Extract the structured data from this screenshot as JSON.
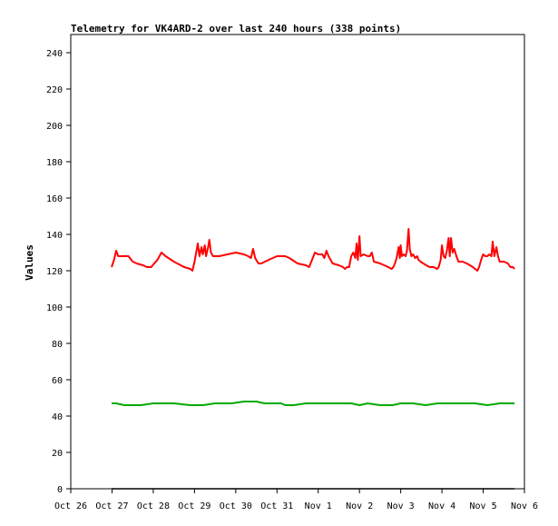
{
  "chart_data": {
    "type": "line",
    "title": "Telemetry for VK4ARD-2 over last 240 hours (338 points)",
    "xlabel": "",
    "ylabel": "Values",
    "ylim": [
      0,
      250
    ],
    "yticks": [
      0,
      20,
      40,
      60,
      80,
      100,
      120,
      140,
      160,
      180,
      200,
      220,
      240
    ],
    "xlim": [
      0,
      11
    ],
    "xticks": [
      {
        "x": 0,
        "label": "Oct 26"
      },
      {
        "x": 1,
        "label": "Oct 27"
      },
      {
        "x": 2,
        "label": "Oct 28"
      },
      {
        "x": 3,
        "label": "Oct 29"
      },
      {
        "x": 4,
        "label": "Oct 30"
      },
      {
        "x": 5,
        "label": "Oct 31"
      },
      {
        "x": 6,
        "label": "Nov 1"
      },
      {
        "x": 7,
        "label": "Nov 2"
      },
      {
        "x": 8,
        "label": "Nov 3"
      },
      {
        "x": 9,
        "label": "Nov 4"
      },
      {
        "x": 10,
        "label": "Nov 5"
      },
      {
        "x": 11,
        "label": "Nov 6"
      }
    ],
    "grid": false,
    "series": [
      {
        "color": "#ff0000",
        "points": [
          [
            0.99,
            122
          ],
          [
            1.05,
            126
          ],
          [
            1.1,
            131
          ],
          [
            1.15,
            128
          ],
          [
            1.25,
            128
          ],
          [
            1.4,
            128
          ],
          [
            1.5,
            125
          ],
          [
            1.6,
            124
          ],
          [
            1.75,
            123
          ],
          [
            1.85,
            122
          ],
          [
            1.95,
            122
          ],
          [
            2.1,
            126
          ],
          [
            2.2,
            130
          ],
          [
            2.3,
            128
          ],
          [
            2.5,
            125
          ],
          [
            2.75,
            122
          ],
          [
            2.9,
            121
          ],
          [
            2.95,
            120
          ],
          [
            3.0,
            125
          ],
          [
            3.05,
            131
          ],
          [
            3.08,
            135
          ],
          [
            3.12,
            128
          ],
          [
            3.17,
            133
          ],
          [
            3.2,
            129
          ],
          [
            3.25,
            134
          ],
          [
            3.28,
            128
          ],
          [
            3.33,
            133
          ],
          [
            3.36,
            137
          ],
          [
            3.4,
            130
          ],
          [
            3.45,
            128
          ],
          [
            3.6,
            128
          ],
          [
            3.8,
            129
          ],
          [
            4.0,
            130
          ],
          [
            4.2,
            129
          ],
          [
            4.3,
            128
          ],
          [
            4.37,
            127
          ],
          [
            4.42,
            132
          ],
          [
            4.47,
            127
          ],
          [
            4.55,
            124
          ],
          [
            4.62,
            124
          ],
          [
            4.8,
            126
          ],
          [
            5.0,
            128
          ],
          [
            5.2,
            128
          ],
          [
            5.3,
            127
          ],
          [
            5.5,
            124
          ],
          [
            5.7,
            123
          ],
          [
            5.78,
            122
          ],
          [
            5.85,
            126
          ],
          [
            5.92,
            130
          ],
          [
            6.0,
            129
          ],
          [
            6.1,
            129
          ],
          [
            6.15,
            127
          ],
          [
            6.2,
            131
          ],
          [
            6.25,
            128
          ],
          [
            6.35,
            124
          ],
          [
            6.5,
            123
          ],
          [
            6.6,
            122
          ],
          [
            6.65,
            121
          ],
          [
            6.7,
            122
          ],
          [
            6.75,
            122
          ],
          [
            6.8,
            128
          ],
          [
            6.85,
            130
          ],
          [
            6.9,
            127
          ],
          [
            6.93,
            135
          ],
          [
            6.96,
            126
          ],
          [
            7.0,
            139
          ],
          [
            7.03,
            128
          ],
          [
            7.1,
            129
          ],
          [
            7.2,
            128
          ],
          [
            7.25,
            128
          ],
          [
            7.3,
            130
          ],
          [
            7.35,
            125
          ],
          [
            7.5,
            124
          ],
          [
            7.6,
            123
          ],
          [
            7.7,
            122
          ],
          [
            7.78,
            121
          ],
          [
            7.82,
            122
          ],
          [
            7.86,
            124
          ],
          [
            7.9,
            127
          ],
          [
            7.95,
            133
          ],
          [
            7.98,
            127
          ],
          [
            8.0,
            134
          ],
          [
            8.03,
            128
          ],
          [
            8.07,
            129
          ],
          [
            8.12,
            128
          ],
          [
            8.15,
            131
          ],
          [
            8.19,
            143
          ],
          [
            8.22,
            132
          ],
          [
            8.26,
            128
          ],
          [
            8.3,
            129
          ],
          [
            8.35,
            127
          ],
          [
            8.4,
            128
          ],
          [
            8.43,
            126
          ],
          [
            8.48,
            125
          ],
          [
            8.55,
            124
          ],
          [
            8.62,
            123
          ],
          [
            8.7,
            122
          ],
          [
            8.8,
            122
          ],
          [
            8.88,
            121
          ],
          [
            8.92,
            122
          ],
          [
            8.97,
            126
          ],
          [
            9.0,
            134
          ],
          [
            9.04,
            128
          ],
          [
            9.08,
            127
          ],
          [
            9.12,
            131
          ],
          [
            9.16,
            138
          ],
          [
            9.19,
            128
          ],
          [
            9.22,
            138
          ],
          [
            9.26,
            130
          ],
          [
            9.3,
            132
          ],
          [
            9.35,
            128
          ],
          [
            9.4,
            125
          ],
          [
            9.5,
            125
          ],
          [
            9.6,
            124
          ],
          [
            9.68,
            123
          ],
          [
            9.75,
            122
          ],
          [
            9.8,
            121
          ],
          [
            9.86,
            120
          ],
          [
            9.9,
            122
          ],
          [
            9.95,
            126
          ],
          [
            10.0,
            129
          ],
          [
            10.05,
            128
          ],
          [
            10.1,
            128
          ],
          [
            10.15,
            129
          ],
          [
            10.2,
            128
          ],
          [
            10.23,
            136
          ],
          [
            10.27,
            128
          ],
          [
            10.32,
            133
          ],
          [
            10.36,
            128
          ],
          [
            10.4,
            125
          ],
          [
            10.5,
            125
          ],
          [
            10.6,
            124
          ],
          [
            10.66,
            122
          ],
          [
            10.72,
            122
          ],
          [
            10.76,
            121
          ]
        ]
      },
      {
        "color": "#00aa00",
        "points": [
          [
            0.99,
            47
          ],
          [
            1.1,
            47
          ],
          [
            1.3,
            46
          ],
          [
            1.45,
            46
          ],
          [
            1.55,
            46
          ],
          [
            1.7,
            46
          ],
          [
            2.0,
            47
          ],
          [
            2.5,
            47
          ],
          [
            2.9,
            46
          ],
          [
            3.2,
            46
          ],
          [
            3.5,
            47
          ],
          [
            3.9,
            47
          ],
          [
            4.2,
            48
          ],
          [
            4.5,
            48
          ],
          [
            4.7,
            47
          ],
          [
            4.9,
            47
          ],
          [
            5.0,
            47
          ],
          [
            5.1,
            47
          ],
          [
            5.2,
            46
          ],
          [
            5.4,
            46
          ],
          [
            5.7,
            47
          ],
          [
            6.0,
            47
          ],
          [
            6.4,
            47
          ],
          [
            6.8,
            47
          ],
          [
            7.0,
            46
          ],
          [
            7.2,
            47
          ],
          [
            7.5,
            46
          ],
          [
            7.8,
            46
          ],
          [
            8.0,
            47
          ],
          [
            8.3,
            47
          ],
          [
            8.6,
            46
          ],
          [
            8.9,
            47
          ],
          [
            9.2,
            47
          ],
          [
            9.5,
            47
          ],
          [
            9.8,
            47
          ],
          [
            10.1,
            46
          ],
          [
            10.4,
            47
          ],
          [
            10.6,
            47
          ],
          [
            10.76,
            47
          ]
        ]
      },
      {
        "color": "#000000",
        "points": [
          [
            0.99,
            0
          ],
          [
            10.76,
            0
          ]
        ]
      }
    ]
  }
}
